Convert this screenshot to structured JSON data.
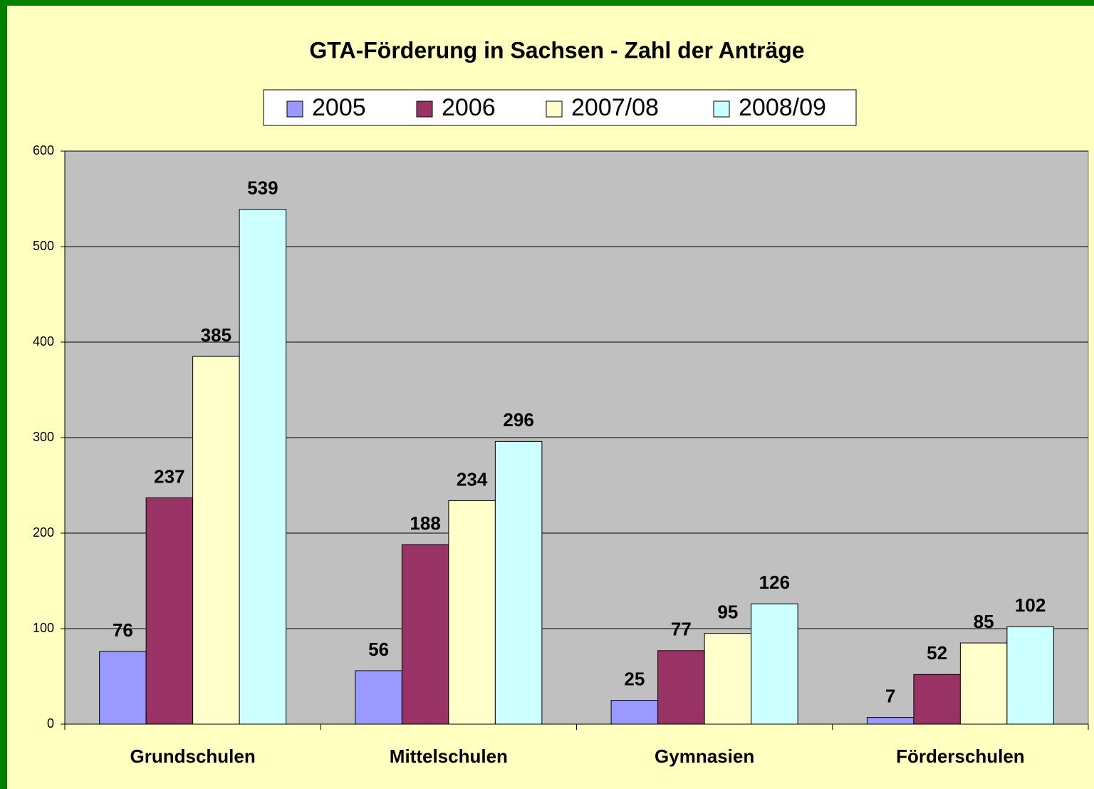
{
  "chart_data": {
    "type": "bar",
    "title": "GTA-Förderung in Sachsen - Zahl der Anträge",
    "categories": [
      "Grundschulen",
      "Mittelschulen",
      "Gymnasien",
      "Förderschulen"
    ],
    "series": [
      {
        "name": "2005",
        "color": "#9999ff",
        "values": [
          76,
          56,
          25,
          7
        ]
      },
      {
        "name": "2006",
        "color": "#993366",
        "values": [
          237,
          188,
          77,
          52
        ]
      },
      {
        "name": "2007/08",
        "color": "#ffffcc",
        "values": [
          385,
          234,
          95,
          85
        ]
      },
      {
        "name": "2008/09",
        "color": "#ccffff",
        "values": [
          539,
          296,
          126,
          102
        ]
      }
    ],
    "ylim": [
      0,
      600
    ],
    "yticks": [
      0,
      100,
      200,
      300,
      400,
      500,
      600
    ],
    "grid": true,
    "legend": "top"
  }
}
